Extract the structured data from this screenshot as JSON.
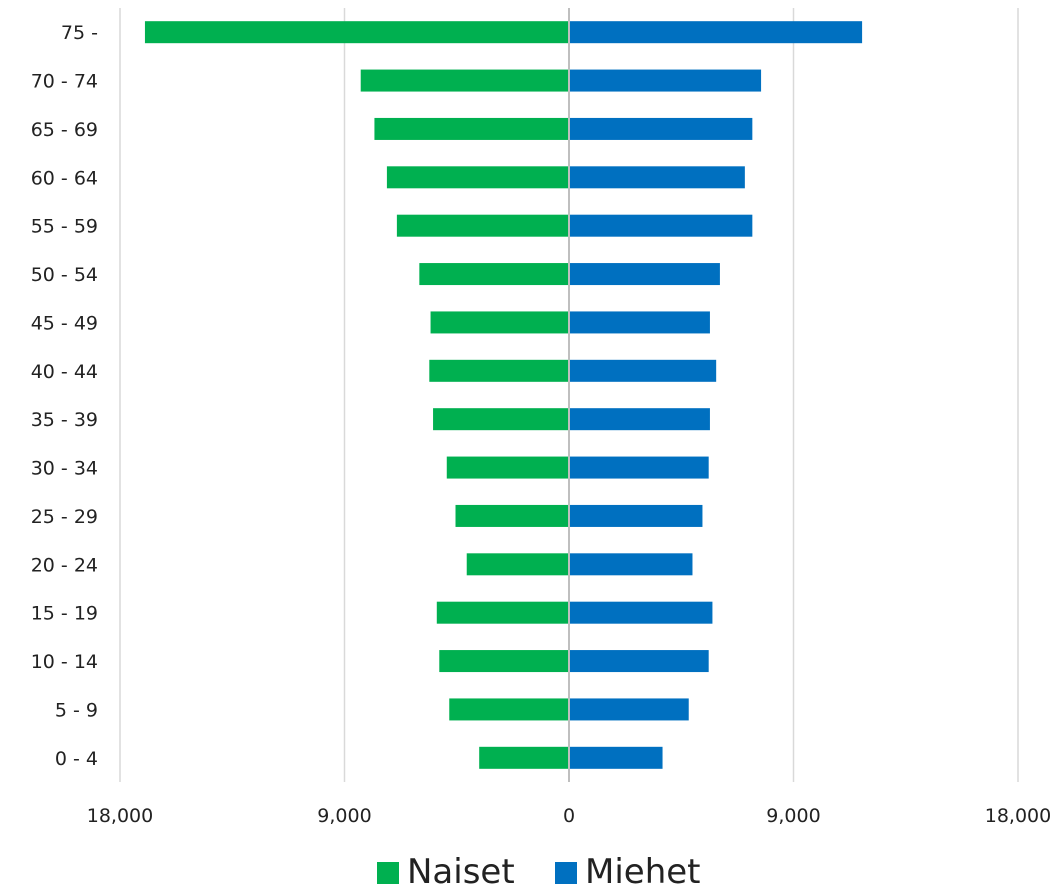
{
  "chart_data": {
    "type": "bar",
    "orientation": "horizontal",
    "layout": "population-pyramid",
    "categories": [
      "0 - 4",
      "5 - 9",
      "10 - 14",
      "15 - 19",
      "20 - 24",
      "25 - 29",
      "30 - 34",
      "35 - 39",
      "40 - 44",
      "45 - 49",
      "50 - 54",
      "55 - 59",
      "60 - 64",
      "65 - 69",
      "70 - 74",
      "75 -"
    ],
    "series": [
      {
        "name": "Naiset",
        "color": "#00b050",
        "side": "left",
        "values": [
          3600,
          4800,
          5200,
          5300,
          4100,
          4550,
          4900,
          5450,
          5600,
          5550,
          6000,
          6900,
          7300,
          7800,
          8350,
          17000
        ]
      },
      {
        "name": "Miehet",
        "color": "#0070c0",
        "side": "right",
        "values": [
          3750,
          4800,
          5600,
          5750,
          4950,
          5350,
          5600,
          5650,
          5900,
          5650,
          6050,
          7350,
          7050,
          7350,
          7700,
          11750
        ]
      }
    ],
    "xlim": [
      -18000,
      18000
    ],
    "x_ticks": [
      -18000,
      -9000,
      0,
      9000,
      18000
    ],
    "x_tick_labels": [
      "18,000",
      "9,000",
      "0",
      "9,000",
      "18,000"
    ],
    "title": "",
    "xlabel": "",
    "ylabel": "",
    "grid": "vertical",
    "legend_position": "bottom"
  },
  "legend": {
    "items": [
      {
        "label": "Naiset",
        "color": "#00b050"
      },
      {
        "label": "Miehet",
        "color": "#0070c0"
      }
    ]
  },
  "colors": {
    "gridline": "#d9d9d9",
    "zero_line": "#bfbfbf",
    "text": "#222222"
  }
}
